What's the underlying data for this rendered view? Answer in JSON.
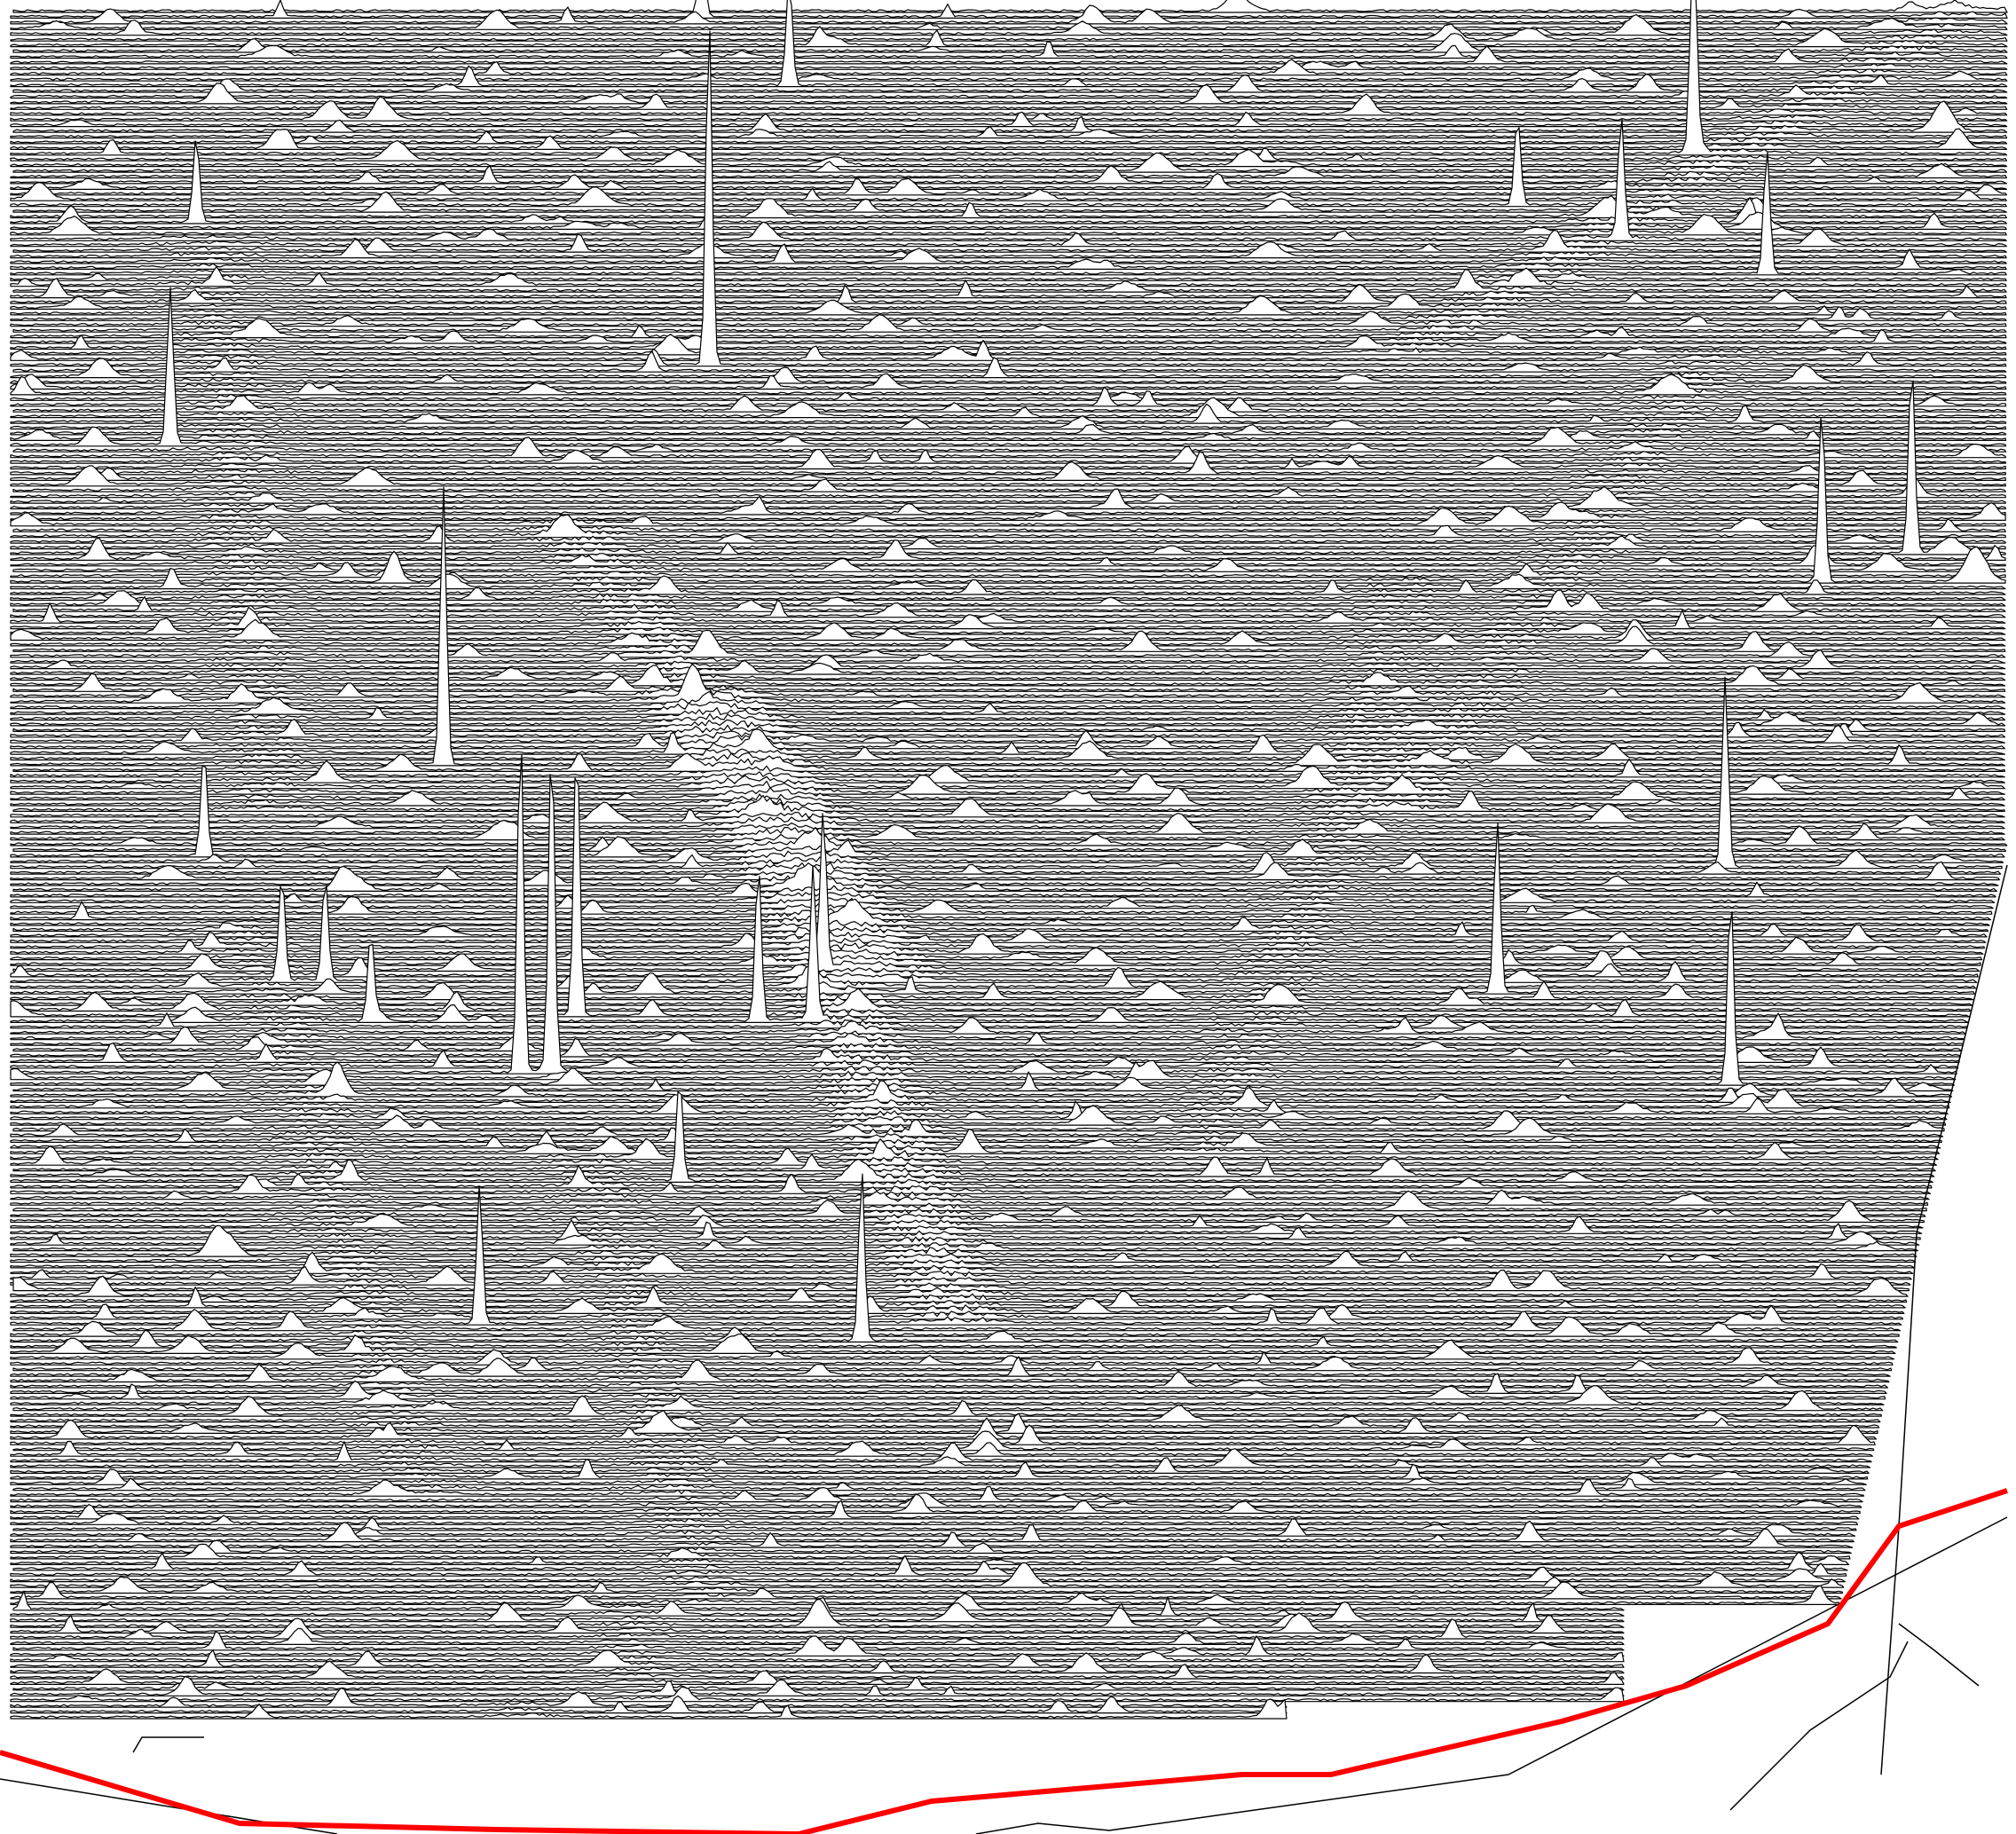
{
  "chart_data": {
    "type": "line",
    "style": "stacked waterfall / joy plot of spectra with hidden-line removal",
    "title": "",
    "xlabel": "",
    "ylabel": "",
    "grid": false,
    "legend": "none",
    "trace_color": "#000000",
    "trace_fill": "#ffffff",
    "baseline_color": "#ff0000",
    "x_range": [
      0,
      1
    ],
    "n_traces": 300,
    "notable_peaks": [
      {
        "x": 0.35,
        "trace": 62,
        "height": 1.0
      },
      {
        "x": 0.346,
        "trace": 1,
        "height": 0.25
      },
      {
        "x": 0.39,
        "trace": 13,
        "height": 0.3
      },
      {
        "x": 0.843,
        "trace": 25,
        "height": 0.6
      },
      {
        "x": 0.807,
        "trace": 40,
        "height": 0.35
      },
      {
        "x": 0.755,
        "trace": 34,
        "height": 0.25
      },
      {
        "x": 0.88,
        "trace": 46,
        "height": 0.35
      },
      {
        "x": 0.093,
        "trace": 37,
        "height": 0.25
      },
      {
        "x": 0.08,
        "trace": 76,
        "height": 0.45
      },
      {
        "x": 0.217,
        "trace": 132,
        "height": 0.8
      },
      {
        "x": 0.262,
        "trace": 186,
        "height": 1.0
      },
      {
        "x": 0.278,
        "trace": 186,
        "height": 0.95
      },
      {
        "x": 0.289,
        "trace": 176,
        "height": 0.8
      },
      {
        "x": 0.382,
        "trace": 177,
        "height": 0.45
      },
      {
        "x": 0.41,
        "trace": 177,
        "height": 0.45
      },
      {
        "x": 0.412,
        "trace": 168,
        "height": 0.45
      },
      {
        "x": 0.097,
        "trace": 148,
        "height": 0.3
      },
      {
        "x": 0.138,
        "trace": 170,
        "height": 0.3
      },
      {
        "x": 0.16,
        "trace": 170,
        "height": 0.3
      },
      {
        "x": 0.184,
        "trace": 177,
        "height": 0.25
      },
      {
        "x": 0.908,
        "trace": 100,
        "height": 0.5
      },
      {
        "x": 0.953,
        "trace": 95,
        "height": 0.55
      },
      {
        "x": 0.861,
        "trace": 150,
        "height": 0.55
      },
      {
        "x": 0.757,
        "trace": 172,
        "height": 0.5
      },
      {
        "x": 0.885,
        "trace": 188,
        "height": 0.55
      },
      {
        "x": 0.248,
        "trace": 230,
        "height": 0.4
      },
      {
        "x": 0.451,
        "trace": 233,
        "height": 0.5
      },
      {
        "x": 0.348,
        "trace": 205,
        "height": 0.3
      }
    ]
  }
}
